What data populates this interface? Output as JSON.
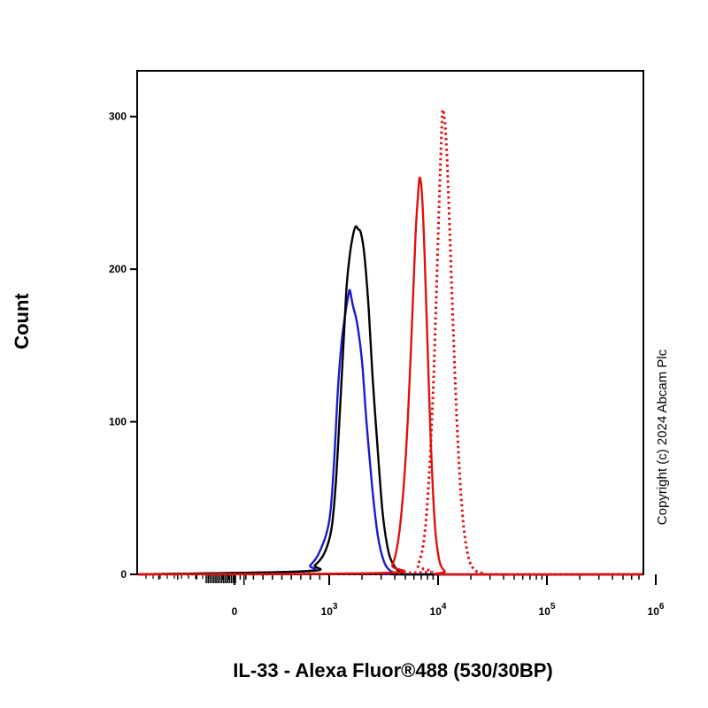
{
  "chart_data": {
    "type": "line",
    "xlabel": "IL-33 - Alexa Fluor®488 (530/30BP)",
    "ylabel": "Count",
    "x_scale": "biexponential",
    "ylim": [
      0,
      330
    ],
    "y_ticks": [
      0,
      100,
      200,
      300
    ],
    "x_ticks": [
      {
        "value": 0,
        "base": "0",
        "exp": ""
      },
      {
        "value": 1000,
        "base": "10",
        "exp": "3"
      },
      {
        "value": 10000,
        "base": "10",
        "exp": "4"
      },
      {
        "value": 100000,
        "base": "10",
        "exp": "5"
      },
      {
        "value": 1000000,
        "base": "10",
        "exp": "6"
      }
    ],
    "grid": false,
    "legend": "none",
    "series": [
      {
        "color": "#1a1acc",
        "style": "solid",
        "peak_x": 1550,
        "peak_y": 186,
        "x": [
          700,
          800,
          900,
          1000,
          1100,
          1200,
          1300,
          1400,
          1500,
          1550,
          1650,
          1800,
          2000,
          2200,
          2500,
          2800,
          3200,
          3700,
          4200,
          5000
        ],
        "y": [
          2,
          6,
          15,
          35,
          70,
          120,
          152,
          170,
          183,
          186,
          176,
          165,
          140,
          100,
          55,
          25,
          8,
          2,
          1,
          0
        ]
      },
      {
        "color": "#000000",
        "style": "solid",
        "peak_x": 1750,
        "peak_y": 228,
        "x": [
          750,
          850,
          950,
          1050,
          1150,
          1250,
          1350,
          1450,
          1550,
          1650,
          1750,
          1850,
          1950,
          2100,
          2300,
          2500,
          2800,
          3100,
          3500,
          4000,
          4600,
          5500
        ],
        "y": [
          2,
          6,
          14,
          30,
          60,
          105,
          150,
          190,
          210,
          222,
          228,
          226,
          224,
          210,
          175,
          130,
          80,
          40,
          15,
          5,
          1,
          0
        ]
      },
      {
        "color": "#e01010",
        "style": "solid",
        "peak_x": 6800,
        "peak_y": 260,
        "x": [
          3200,
          3800,
          4300,
          4800,
          5300,
          5800,
          6200,
          6600,
          6800,
          7100,
          7500,
          8000,
          8600,
          9300,
          10200,
          11500,
          13000
        ],
        "y": [
          1,
          6,
          22,
          55,
          105,
          170,
          222,
          252,
          260,
          250,
          212,
          150,
          85,
          35,
          10,
          2,
          0
        ]
      },
      {
        "color": "#e01010",
        "style": "dotted",
        "peak_x": 11000,
        "peak_y": 304,
        "x": [
          5500,
          6500,
          7400,
          8200,
          9000,
          9700,
          10300,
          10800,
          11000,
          11400,
          12000,
          12800,
          13800,
          15000,
          16500,
          18500,
          21000,
          25000,
          30000
        ],
        "y": [
          1,
          6,
          22,
          60,
          120,
          190,
          250,
          292,
          304,
          300,
          278,
          225,
          160,
          95,
          45,
          15,
          4,
          1,
          0
        ]
      }
    ]
  },
  "copyright": "Copyright (c) 2024 Abcam Plc"
}
